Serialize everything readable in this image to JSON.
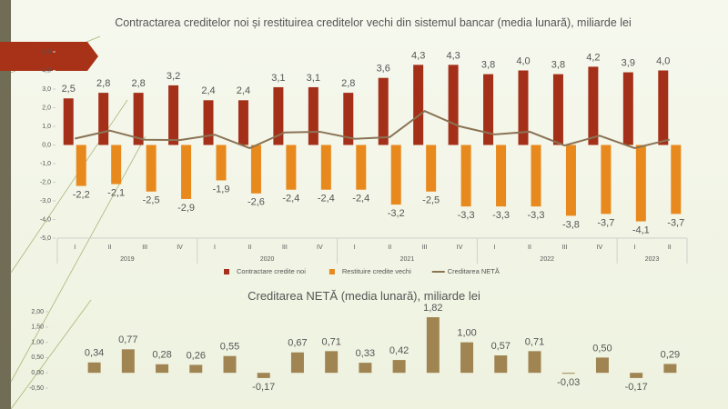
{
  "chart_data": [
    {
      "type": "bar",
      "title": "Contractarea creditelor noi și restituirea creditelor vechi din sistemul bancar (media lunară),  miliarde lei",
      "categories": [
        {
          "label": "I",
          "group": "2019"
        },
        {
          "label": "II"
        },
        {
          "label": "III"
        },
        {
          "label": "IV"
        },
        {
          "label": "I",
          "group": "2020"
        },
        {
          "label": "II"
        },
        {
          "label": "III"
        },
        {
          "label": "IV"
        },
        {
          "label": "I",
          "group": "2021"
        },
        {
          "label": "II"
        },
        {
          "label": "III"
        },
        {
          "label": "IV"
        },
        {
          "label": "I",
          "group": "2022"
        },
        {
          "label": "II"
        },
        {
          "label": "III"
        },
        {
          "label": "IV"
        },
        {
          "label": "I",
          "group": "2023"
        },
        {
          "label": "II"
        }
      ],
      "series": [
        {
          "name": "Contractare credite noi",
          "color": "#a5301a",
          "values": [
            2.5,
            2.8,
            2.8,
            3.2,
            2.4,
            2.4,
            3.1,
            3.1,
            2.8,
            3.6,
            4.3,
            4.3,
            3.8,
            4.0,
            3.8,
            4.2,
            3.9,
            4.0
          ],
          "value_labels": [
            "2,5",
            "2,8",
            "2,8",
            "3,2",
            "2,4",
            "2,4",
            "3,1",
            "3,1",
            "2,8",
            "3,6",
            "4,3",
            "4,3",
            "3,8",
            "4,0",
            "3,8",
            "4,2",
            "3,9",
            "4,0"
          ]
        },
        {
          "name": "Restituire credite vechi",
          "color": "#e8891e",
          "values": [
            -2.2,
            -2.1,
            -2.5,
            -2.9,
            -1.9,
            -2.6,
            -2.4,
            -2.4,
            -2.4,
            -3.2,
            -2.5,
            -3.3,
            -3.3,
            -3.3,
            -3.8,
            -3.7,
            -4.1,
            -3.7
          ],
          "value_labels": [
            "-2,2",
            "-2,1",
            "-2,5",
            "-2,9",
            "-1,9",
            "-2,6",
            "-2,4",
            "-2,4",
            "-2,4",
            "-3,2",
            "-2,5",
            "-3,3",
            "-3,3",
            "-3,3",
            "-3,8",
            "-3,7",
            "-4,1",
            "-3,7"
          ]
        },
        {
          "name": "Creditarea NETĂ",
          "color": "#8b7355",
          "type": "line",
          "values": [
            0.34,
            0.77,
            0.28,
            0.26,
            0.55,
            -0.17,
            0.67,
            0.71,
            0.33,
            0.42,
            1.82,
            1.0,
            0.57,
            0.71,
            -0.03,
            0.5,
            -0.17,
            0.29
          ]
        }
      ],
      "ylim": [
        -5,
        5
      ],
      "yticks": [
        {
          "value": 5,
          "label": "5,0"
        },
        {
          "value": 4,
          "label": "4,0"
        },
        {
          "value": 3,
          "label": "3,0"
        },
        {
          "value": 2,
          "label": "2,0"
        },
        {
          "value": 1,
          "label": "1,0"
        },
        {
          "value": 0,
          "label": "0,0"
        },
        {
          "value": -1,
          "label": "-1,0"
        },
        {
          "value": -2,
          "label": "-2,0"
        },
        {
          "value": -3,
          "label": "-3,0"
        },
        {
          "value": -4,
          "label": "-4,0"
        },
        {
          "value": -5,
          "label": "-5,0"
        }
      ],
      "legend": "bottom"
    },
    {
      "type": "bar",
      "title": "Creditarea NETĂ  (media lunară),  miliarde lei",
      "color": "#a08552",
      "values": [
        0.34,
        0.77,
        0.28,
        0.26,
        0.55,
        -0.17,
        0.67,
        0.71,
        0.33,
        0.42,
        1.82,
        1.0,
        0.57,
        0.71,
        -0.03,
        0.5,
        -0.17,
        0.29
      ],
      "value_labels": [
        "0,34",
        "0,77",
        "0,28",
        "0,26",
        "0,55",
        "-0,17",
        "0,67",
        "0,71",
        "0,33",
        "0,42",
        "1,82",
        "1,00",
        "0,57",
        "0,71",
        "-0,03",
        "0,50",
        "-0,17",
        "0,29"
      ],
      "ylim": [
        -0.5,
        2
      ],
      "yticks": [
        {
          "value": 2,
          "label": "2,00"
        },
        {
          "value": 1.5,
          "label": "1,50"
        },
        {
          "value": 1,
          "label": "1,00"
        },
        {
          "value": 0.5,
          "label": "0,50"
        },
        {
          "value": 0,
          "label": "0,00"
        },
        {
          "value": -0.5,
          "label": "-0,50"
        }
      ]
    }
  ]
}
